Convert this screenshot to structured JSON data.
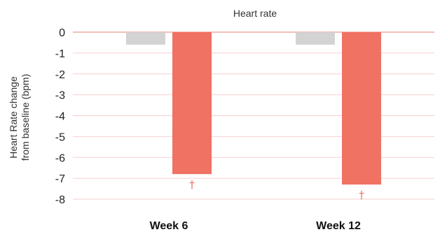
{
  "chart_data": {
    "type": "bar",
    "title": "Heart rate",
    "ylabel": "Heart Rate change from baseline (bpm)",
    "ylabel_lines": [
      "Heart Rate change",
      "from baseline (bpm)"
    ],
    "categories": [
      "Week 6",
      "Week 12"
    ],
    "series": [
      {
        "values": [
          -0.6,
          -0.6
        ],
        "color": "#d3d3d3"
      },
      {
        "values": [
          -6.8,
          -7.3
        ],
        "color": "#ef7263",
        "annotations": [
          "†",
          "†"
        ]
      }
    ],
    "ylim": [
      -8,
      0
    ],
    "yticks": [
      0,
      -1,
      -2,
      -3,
      -4,
      -5,
      -6,
      -7,
      -8
    ],
    "grid": true,
    "grid_color": "#f6cfcf",
    "zero_line_color": "#f1a8a0",
    "annotation_color": "#ef7263"
  }
}
